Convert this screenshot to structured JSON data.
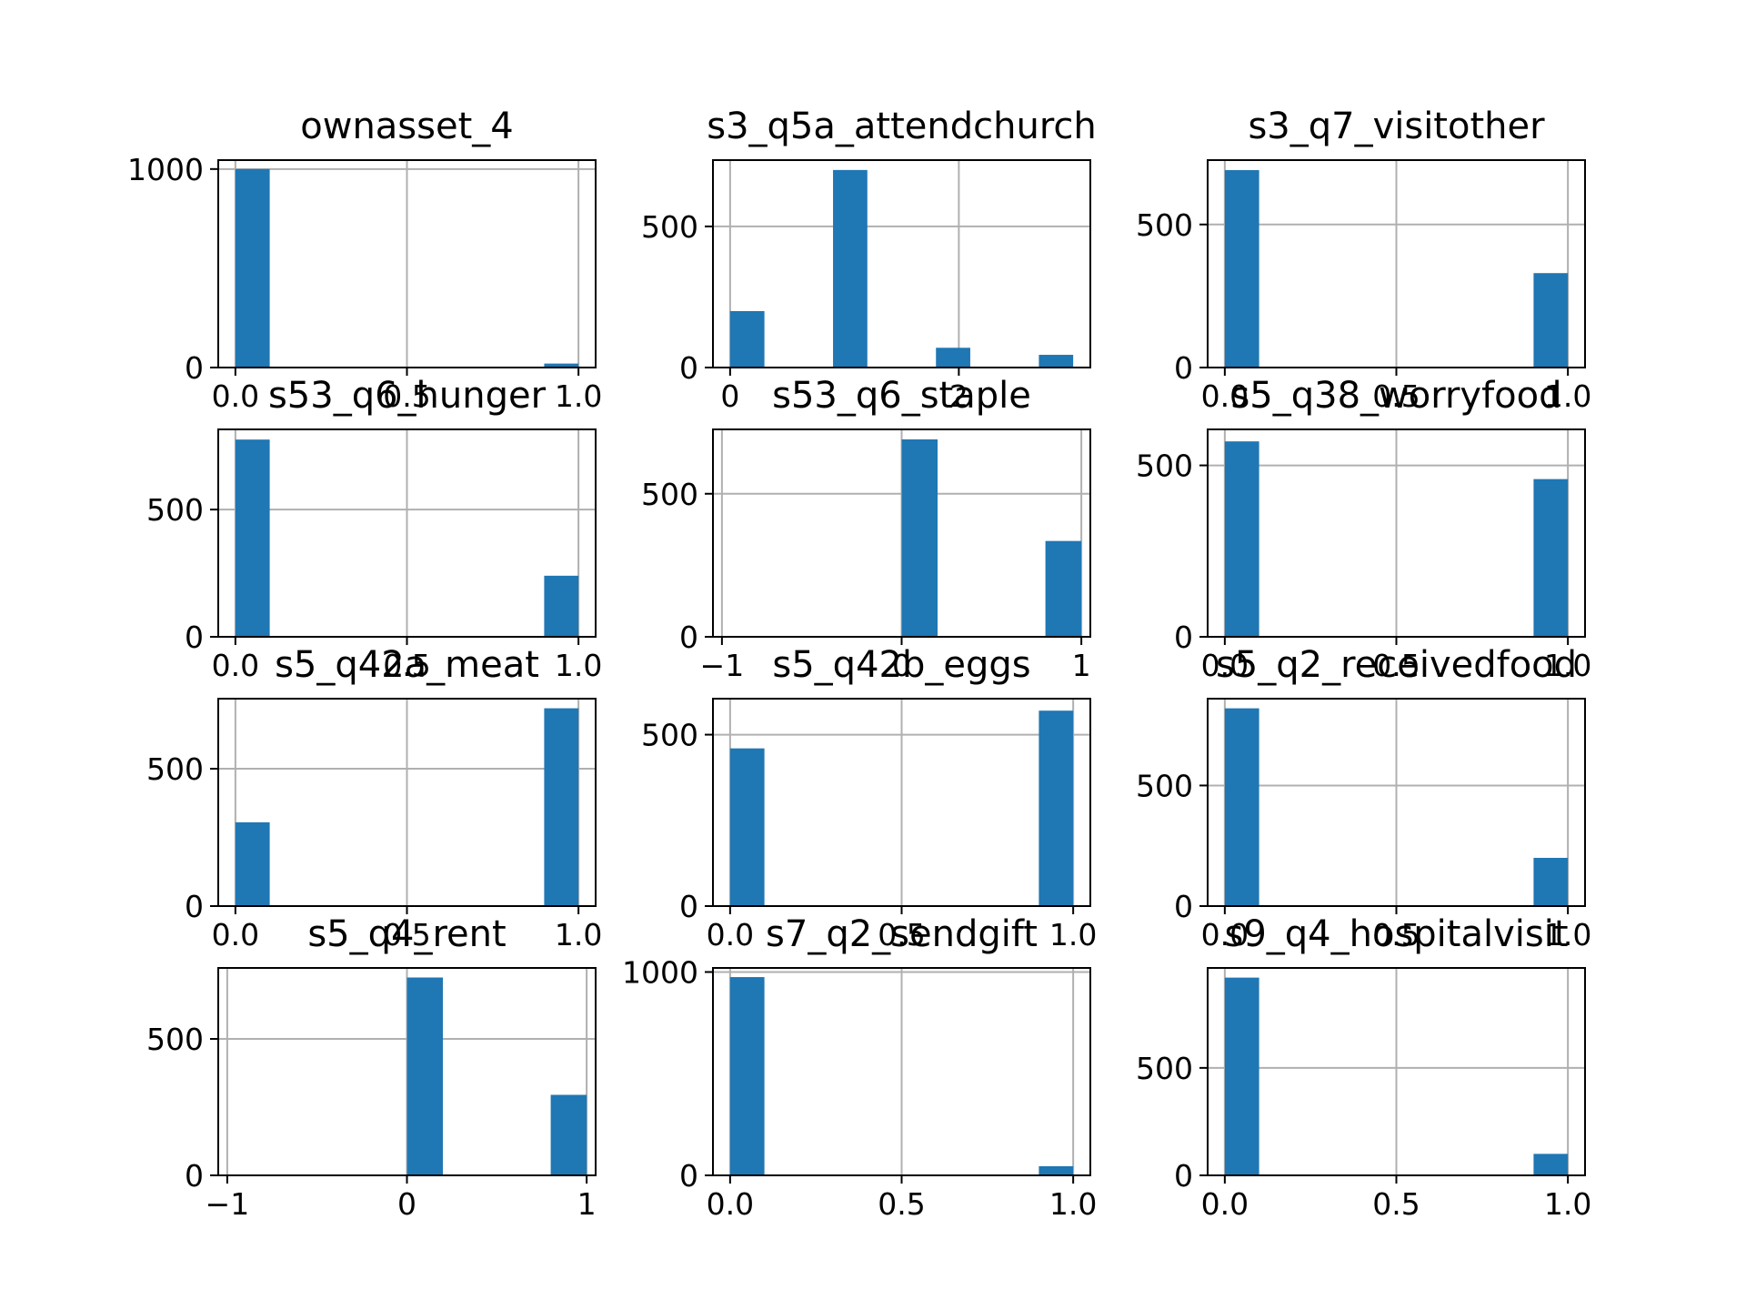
{
  "chart_data": {
    "type": "histogram-grid",
    "grid": "on",
    "bar_color": "#1f77b4",
    "grid_color": "#b0b0b0",
    "panels": [
      {
        "title": "ownasset_4",
        "xlim": [
          -0.05,
          1.05
        ],
        "ylim": [
          0,
          1045
        ],
        "xticks": [
          0.0,
          0.5,
          1.0
        ],
        "xtick_labels": [
          "0.0",
          "0.5",
          "1.0"
        ],
        "yticks": [
          0,
          1000
        ],
        "ytick_labels": [
          "0",
          "1000"
        ],
        "bars": [
          {
            "x0": 0.0,
            "x1": 0.1,
            "value": 1000
          },
          {
            "x0": 0.9,
            "x1": 1.0,
            "value": 20
          }
        ]
      },
      {
        "title": "s3_q5a_attendchurch",
        "xlim": [
          -0.15,
          3.15
        ],
        "ylim": [
          0,
          735
        ],
        "xticks": [
          0,
          2
        ],
        "xtick_labels": [
          "0",
          "2"
        ],
        "yticks": [
          0,
          500
        ],
        "ytick_labels": [
          "0",
          "500"
        ],
        "bars": [
          {
            "x0": 0.0,
            "x1": 0.3,
            "value": 200
          },
          {
            "x0": 0.9,
            "x1": 1.2,
            "value": 700
          },
          {
            "x0": 1.8,
            "x1": 2.1,
            "value": 70
          },
          {
            "x0": 2.7,
            "x1": 3.0,
            "value": 45
          }
        ]
      },
      {
        "title": "s3_q7_visitother",
        "xlim": [
          -0.05,
          1.05
        ],
        "ylim": [
          0,
          725
        ],
        "xticks": [
          0.0,
          0.5,
          1.0
        ],
        "xtick_labels": [
          "0.0",
          "0.5",
          "1.0"
        ],
        "yticks": [
          0,
          500
        ],
        "ytick_labels": [
          "0",
          "500"
        ],
        "bars": [
          {
            "x0": 0.0,
            "x1": 0.1,
            "value": 690
          },
          {
            "x0": 0.9,
            "x1": 1.0,
            "value": 330
          }
        ]
      },
      {
        "title": "s53_q6_hunger",
        "xlim": [
          -0.05,
          1.05
        ],
        "ylim": [
          0,
          815
        ],
        "xticks": [
          0.0,
          0.5,
          1.0
        ],
        "xtick_labels": [
          "0.0",
          "0.5",
          "1.0"
        ],
        "yticks": [
          0,
          500
        ],
        "ytick_labels": [
          "0",
          "500"
        ],
        "bars": [
          {
            "x0": 0.0,
            "x1": 0.1,
            "value": 775
          },
          {
            "x0": 0.9,
            "x1": 1.0,
            "value": 240
          }
        ]
      },
      {
        "title": "s53_q6_staple",
        "xlim": [
          -1.05,
          1.05
        ],
        "ylim": [
          0,
          725
        ],
        "xticks": [
          -1,
          0,
          1
        ],
        "xtick_labels": [
          "−1",
          "0",
          "1"
        ],
        "yticks": [
          0,
          500
        ],
        "ytick_labels": [
          "0",
          "500"
        ],
        "bars": [
          {
            "x0": 0.0,
            "x1": 0.2,
            "value": 690
          },
          {
            "x0": 0.8,
            "x1": 1.0,
            "value": 335
          }
        ]
      },
      {
        "title": "s5_q38_worryfood",
        "xlim": [
          -0.05,
          1.05
        ],
        "ylim": [
          0,
          605
        ],
        "xticks": [
          0.0,
          0.5,
          1.0
        ],
        "xtick_labels": [
          "0.0",
          "0.5",
          "1.0"
        ],
        "yticks": [
          0,
          500
        ],
        "ytick_labels": [
          "0",
          "500"
        ],
        "bars": [
          {
            "x0": 0.0,
            "x1": 0.1,
            "value": 570
          },
          {
            "x0": 0.9,
            "x1": 1.0,
            "value": 460
          }
        ]
      },
      {
        "title": "s5_q42a_meat",
        "xlim": [
          -0.05,
          1.05
        ],
        "ylim": [
          0,
          755
        ],
        "xticks": [
          0.0,
          0.5,
          1.0
        ],
        "xtick_labels": [
          "0.0",
          "0.5",
          "1.0"
        ],
        "yticks": [
          0,
          500
        ],
        "ytick_labels": [
          "0",
          "500"
        ],
        "bars": [
          {
            "x0": 0.0,
            "x1": 0.1,
            "value": 305
          },
          {
            "x0": 0.9,
            "x1": 1.0,
            "value": 720
          }
        ]
      },
      {
        "title": "s5_q42b_eggs",
        "xlim": [
          -0.05,
          1.05
        ],
        "ylim": [
          0,
          605
        ],
        "xticks": [
          0.0,
          0.5,
          1.0
        ],
        "xtick_labels": [
          "0.0",
          "0.5",
          "1.0"
        ],
        "yticks": [
          0,
          500
        ],
        "ytick_labels": [
          "0",
          "500"
        ],
        "bars": [
          {
            "x0": 0.0,
            "x1": 0.1,
            "value": 460
          },
          {
            "x0": 0.9,
            "x1": 1.0,
            "value": 570
          }
        ]
      },
      {
        "title": "s5_q2_receivedfood",
        "xlim": [
          -0.05,
          1.05
        ],
        "ylim": [
          0,
          860
        ],
        "xticks": [
          0.0,
          0.5,
          1.0
        ],
        "xtick_labels": [
          "0.0",
          "0.5",
          "1.0"
        ],
        "yticks": [
          0,
          500
        ],
        "ytick_labels": [
          "0",
          "500"
        ],
        "bars": [
          {
            "x0": 0.0,
            "x1": 0.1,
            "value": 820
          },
          {
            "x0": 0.9,
            "x1": 1.0,
            "value": 200
          }
        ]
      },
      {
        "title": "s5_q4_rent",
        "xlim": [
          -1.05,
          1.05
        ],
        "ylim": [
          0,
          760
        ],
        "xticks": [
          -1,
          0,
          1
        ],
        "xtick_labels": [
          "−1",
          "0",
          "1"
        ],
        "yticks": [
          0,
          500
        ],
        "ytick_labels": [
          "0",
          "500"
        ],
        "bars": [
          {
            "x0": 0.0,
            "x1": 0.2,
            "value": 725
          },
          {
            "x0": 0.8,
            "x1": 1.0,
            "value": 295
          }
        ]
      },
      {
        "title": "s7_q2_sendgift",
        "xlim": [
          -0.05,
          1.05
        ],
        "ylim": [
          0,
          1020
        ],
        "xticks": [
          0.0,
          0.5,
          1.0
        ],
        "xtick_labels": [
          "0.0",
          "0.5",
          "1.0"
        ],
        "yticks": [
          0,
          1000
        ],
        "ytick_labels": [
          "0",
          "1000"
        ],
        "bars": [
          {
            "x0": 0.0,
            "x1": 0.1,
            "value": 975
          },
          {
            "x0": 0.9,
            "x1": 1.0,
            "value": 45
          }
        ]
      },
      {
        "title": "s9_q4_hospitalvisit",
        "xlim": [
          -0.05,
          1.05
        ],
        "ylim": [
          0,
          965
        ],
        "xticks": [
          0.0,
          0.5,
          1.0
        ],
        "xtick_labels": [
          "0.0",
          "0.5",
          "1.0"
        ],
        "yticks": [
          0,
          500
        ],
        "ytick_labels": [
          "0",
          "500"
        ],
        "bars": [
          {
            "x0": 0.0,
            "x1": 0.1,
            "value": 920
          },
          {
            "x0": 0.9,
            "x1": 1.0,
            "value": 100
          }
        ]
      }
    ]
  }
}
